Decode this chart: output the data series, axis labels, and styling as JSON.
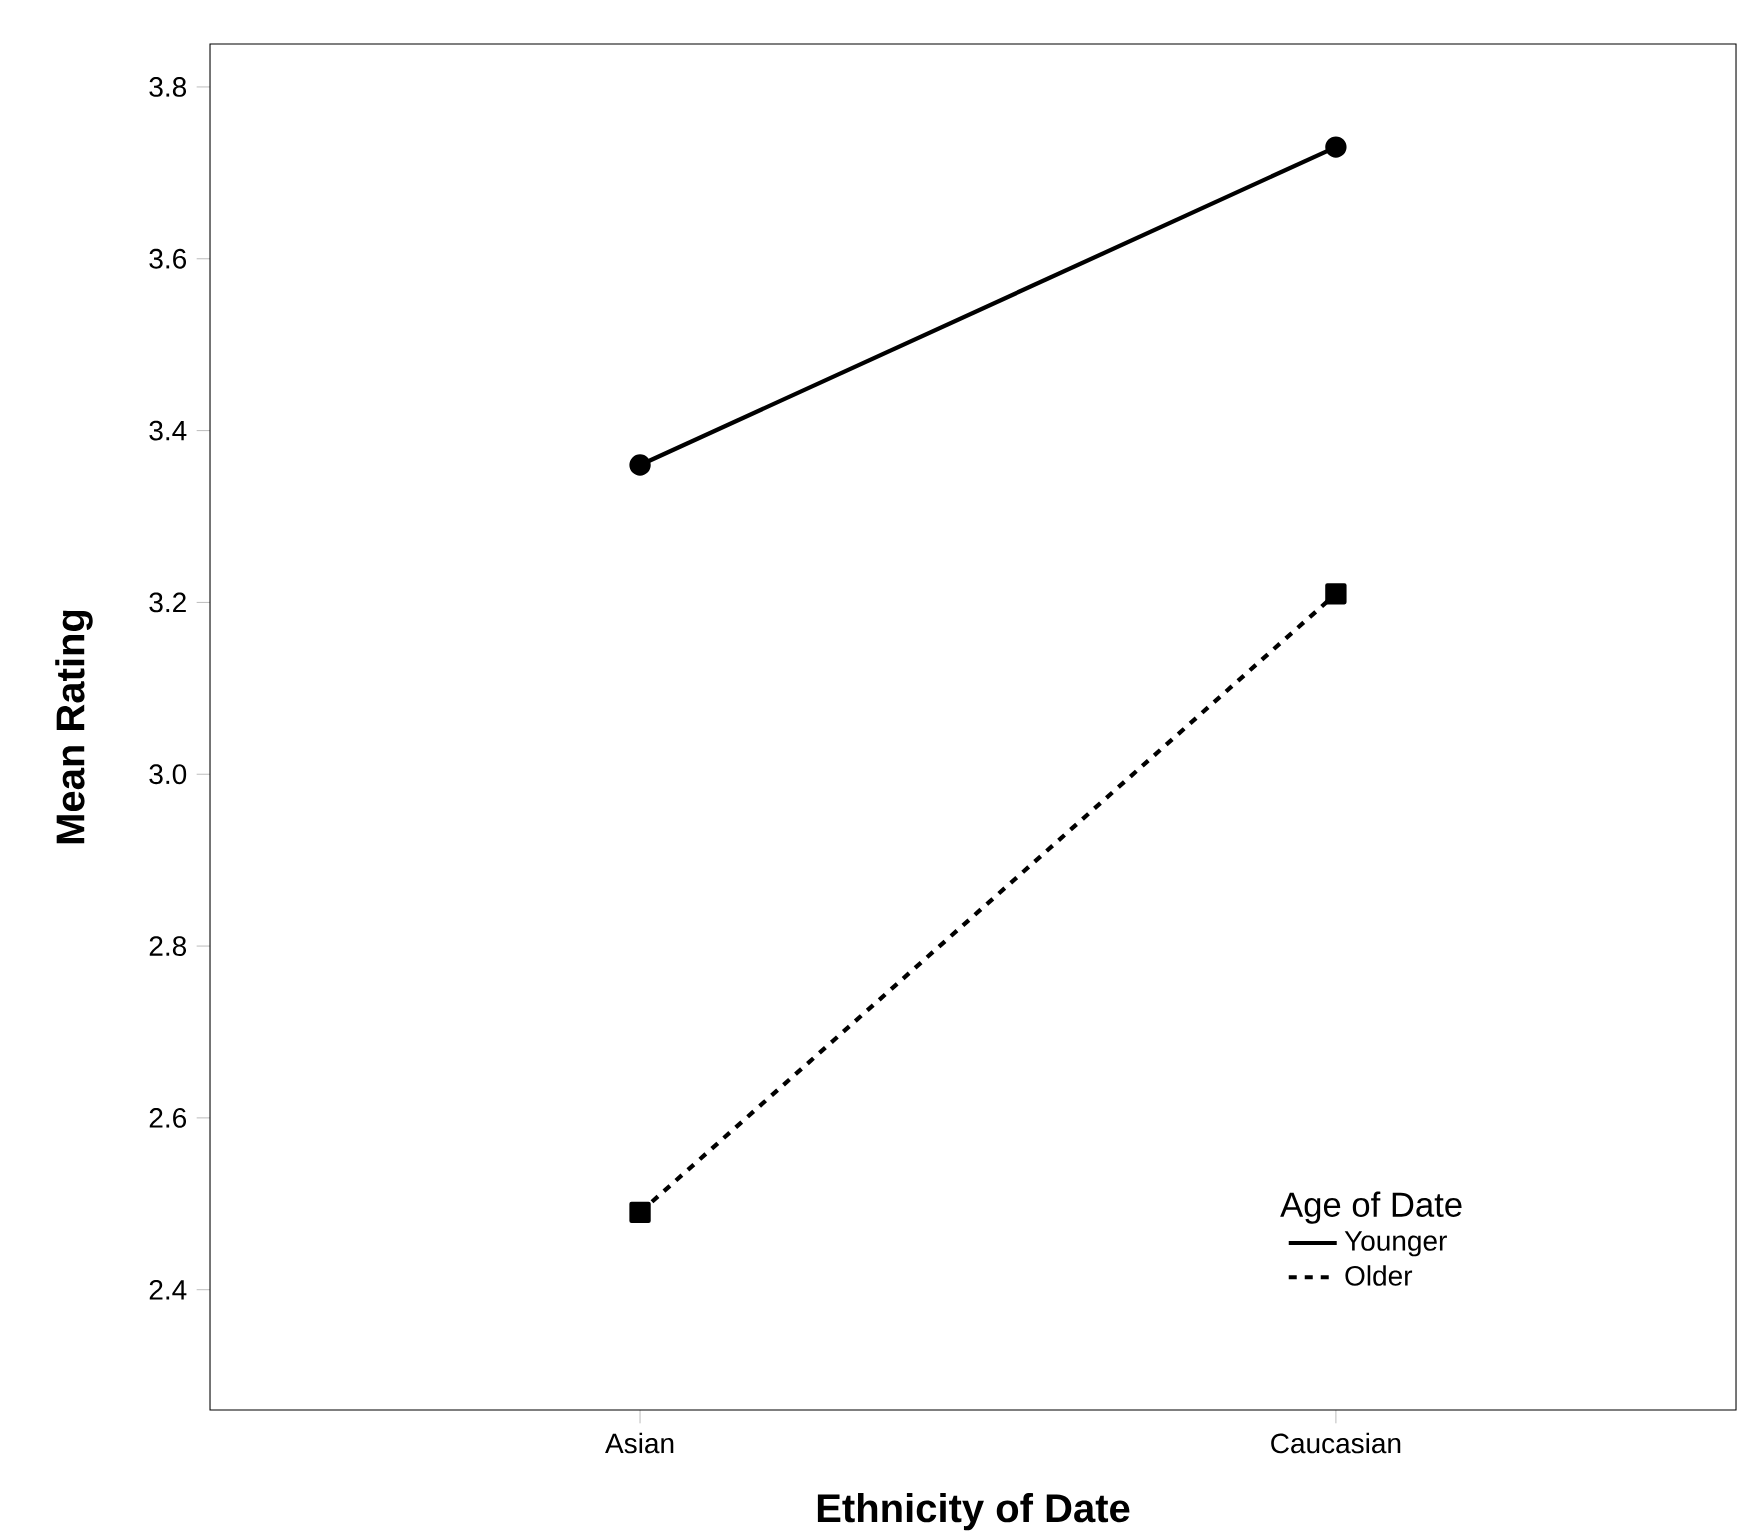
{
  "chart_data": {
    "type": "line",
    "xlabel": "Ethnicity of Date",
    "ylabel": "Mean Rating",
    "legend_title": "Age of Date",
    "categories": [
      "Asian",
      "Caucasian"
    ],
    "series": [
      {
        "name": "Younger",
        "color": "#000000",
        "values": [
          3.36,
          3.73
        ],
        "marker": "circle",
        "line_style": "solid"
      },
      {
        "name": "Older",
        "color": "#000000",
        "values": [
          2.49,
          3.21
        ],
        "marker": "square",
        "line_style": "dashed"
      }
    ],
    "ylim": [
      2.26,
      3.85
    ],
    "yticks": [
      2.4,
      2.6,
      2.8,
      {
        "value": 3.0,
        "label": "3.0"
      },
      3.2,
      3.4,
      3.6,
      3.8
    ],
    "grid": false,
    "legend": "bottom right"
  }
}
